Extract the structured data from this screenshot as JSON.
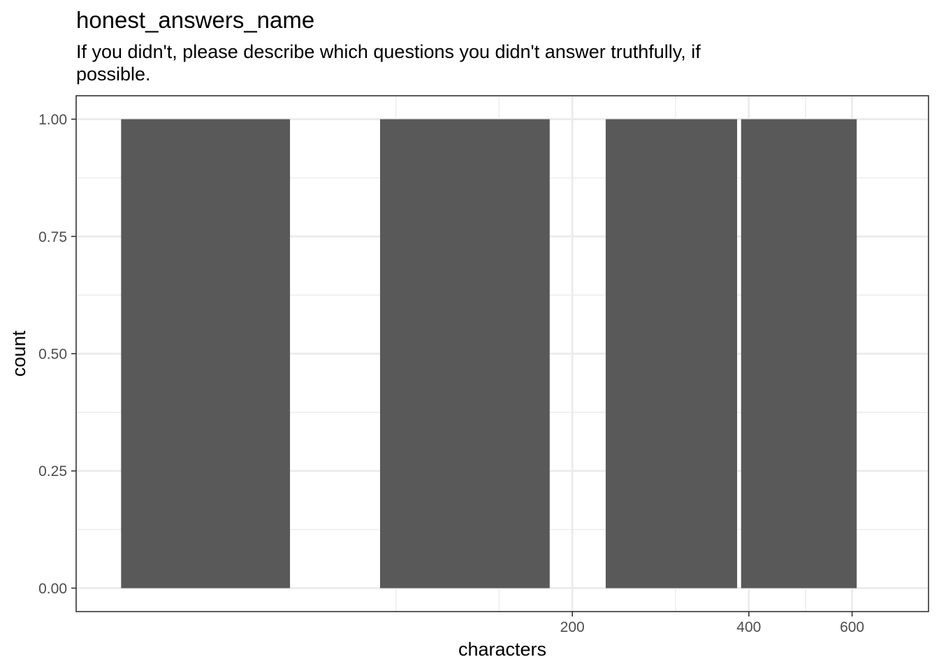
{
  "chart_data": {
    "type": "bar",
    "title": "honest_answers_name",
    "subtitle": "If you didn't, please describe which questions you didn't answer truthfully, if possible.",
    "xlabel": "characters",
    "ylabel": "count",
    "x_scale": "log10",
    "xlim": [
      28.5,
      810
    ],
    "ylim": [
      -0.05,
      1.05
    ],
    "x_ticks": [
      {
        "value": 200,
        "label": "200"
      },
      {
        "value": 400,
        "label": "400"
      },
      {
        "value": 600,
        "label": "600"
      }
    ],
    "y_ticks": [
      {
        "value": 0,
        "label": "0.00"
      },
      {
        "value": 0.25,
        "label": "0.25"
      },
      {
        "value": 0.5,
        "label": "0.50"
      },
      {
        "value": 0.75,
        "label": "0.75"
      },
      {
        "value": 1,
        "label": "1.00"
      }
    ],
    "x_minor_ticks": [
      100,
      150,
      300,
      500
    ],
    "bars": [
      {
        "x_start": 34,
        "x_end": 66,
        "count": 1
      },
      {
        "x_start": 94,
        "x_end": 183,
        "count": 1
      },
      {
        "x_start": 228,
        "x_end": 382,
        "count": 1
      },
      {
        "x_start": 388,
        "x_end": 611,
        "count": 1
      }
    ],
    "bar_color": "#595959",
    "grid": true,
    "panel_border_color": "#333333"
  }
}
